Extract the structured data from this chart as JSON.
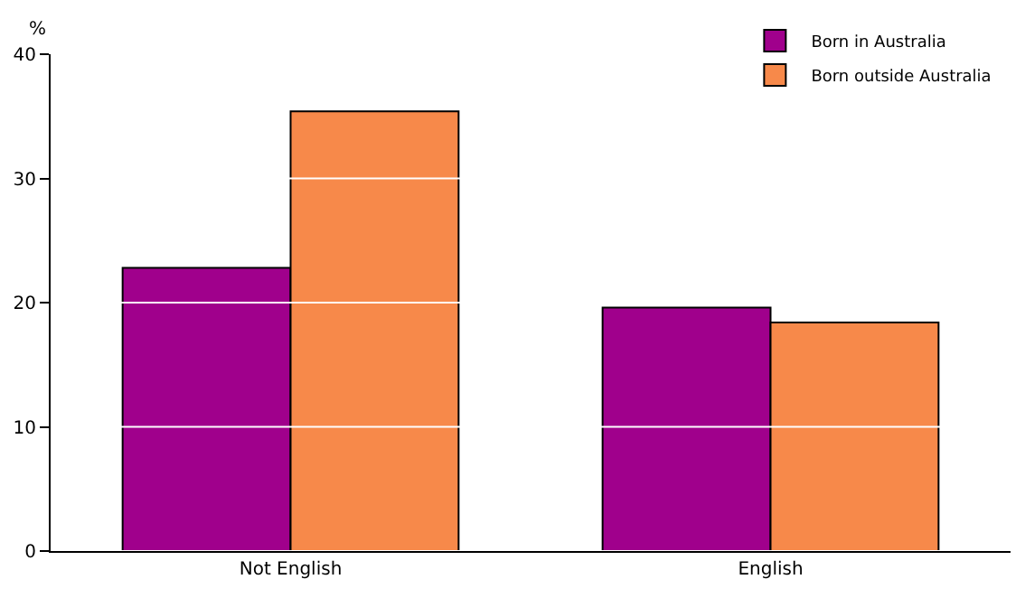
{
  "chart_data": {
    "type": "bar",
    "ylabel": "%",
    "categories": [
      "Not English",
      "English"
    ],
    "series": [
      {
        "name": "Born in Australia",
        "color": "#a0008c",
        "values": [
          22.8,
          19.6
        ]
      },
      {
        "name": "Born outside Australia",
        "color": "#f7894a",
        "values": [
          35.4,
          18.4
        ]
      }
    ],
    "ylim": [
      0,
      40
    ],
    "yticks": [
      0,
      10,
      20,
      30,
      40
    ],
    "grid": "y",
    "legend": "top right"
  }
}
